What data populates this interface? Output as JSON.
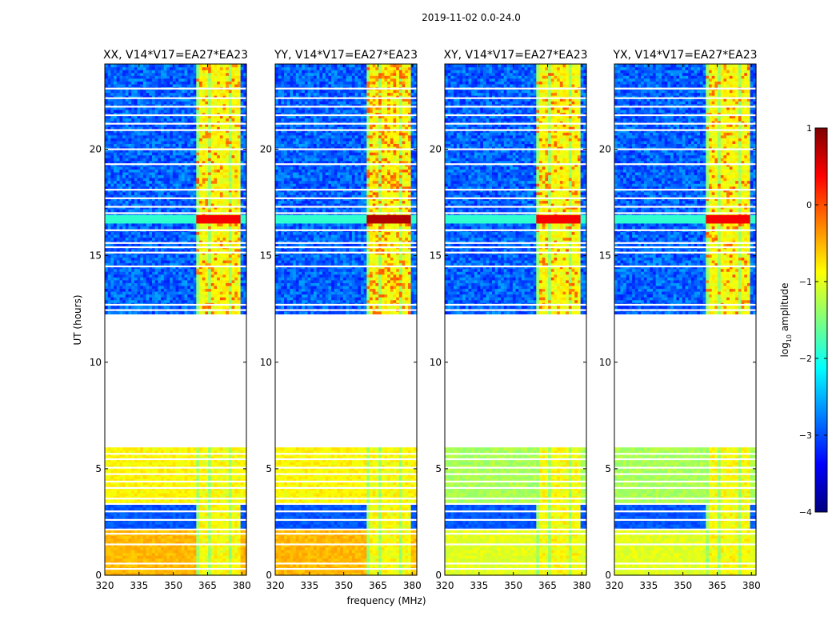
{
  "figure": {
    "suptitle": "2019-11-02 0.0-24.0",
    "xlabel": "frequency (MHz)",
    "ylabel": "UT (hours)"
  },
  "chart_data": {
    "type": "heatmap",
    "colormap": "jet",
    "x": {
      "unit": "MHz",
      "range": [
        320,
        382
      ],
      "ticks": [
        320,
        335,
        350,
        365,
        380
      ],
      "tick_labels": [
        "320",
        "335",
        "350",
        "365",
        "380"
      ]
    },
    "y": {
      "unit": "hours",
      "range": [
        0,
        24
      ],
      "ticks": [
        0,
        5,
        10,
        15,
        20
      ],
      "tick_labels": [
        "0",
        "5",
        "10",
        "15",
        "20"
      ]
    },
    "panels": [
      {
        "title": "XX, V14*V17=EA27*EA23",
        "polarization": "XX",
        "low_band_level": "high",
        "strong_rfi_level": "medium"
      },
      {
        "title": "YY, V14*V17=EA27*EA23",
        "polarization": "YY",
        "low_band_level": "high",
        "strong_rfi_level": "high"
      },
      {
        "title": "XY, V14*V17=EA27*EA23",
        "polarization": "XY",
        "low_band_level": "medium",
        "strong_rfi_level": "medium"
      },
      {
        "title": "YX, V14*V17=EA27*EA23",
        "polarization": "YX",
        "low_band_level": "medium",
        "strong_rfi_level": "medium"
      }
    ],
    "data_gaps_hours": [
      [
        6.05,
        12.25
      ]
    ],
    "rfi_band_MHz": [
      360.5,
      379.5
    ],
    "strong_event_hours": [
      16.55,
      16.95
    ],
    "colorbar": {
      "label": "log10 amplitude",
      "label_main": "log",
      "label_sub": "10",
      "label_rest": " amplitude",
      "range": [
        -4,
        1
      ],
      "ticks": [
        1,
        0,
        -1,
        -2,
        -3,
        -4
      ],
      "tick_labels": [
        "1",
        "0",
        "−1",
        "−2",
        "−3",
        "−4"
      ]
    }
  }
}
